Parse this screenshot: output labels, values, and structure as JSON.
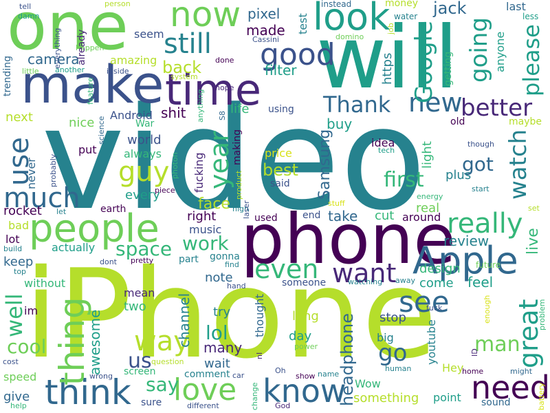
{
  "palette": {
    "dark_purple": "#440154",
    "indigo": "#3b528b",
    "blue": "#31688e",
    "teal": "#26828e",
    "green_teal": "#1f9e89",
    "green": "#35b779",
    "light_green": "#6ece58",
    "lime": "#b5de2b",
    "yellow": "#d8e219"
  },
  "words": [
    {
      "text": "video",
      "color": "#26828e"
    },
    {
      "text": "iPhone",
      "color": "#b5de2b"
    },
    {
      "text": "phone",
      "color": "#440154"
    },
    {
      "text": "will",
      "color": "#1f9e89"
    },
    {
      "text": "one",
      "color": "#6ece58"
    },
    {
      "text": "make",
      "color": "#3b528b"
    },
    {
      "text": "time",
      "color": "#482878"
    },
    {
      "text": "people",
      "color": "#6ece58"
    },
    {
      "text": "Apple",
      "color": "#31688e"
    },
    {
      "text": "look",
      "color": "#1f9e89"
    },
    {
      "text": "now",
      "color": "#6ece58"
    },
    {
      "text": "good",
      "color": "#3b528b"
    },
    {
      "text": "still",
      "color": "#26828e"
    },
    {
      "text": "think",
      "color": "#31688e"
    },
    {
      "text": "know",
      "color": "#31688e"
    },
    {
      "text": "need",
      "color": "#440154"
    },
    {
      "text": "love",
      "color": "#6ece58"
    },
    {
      "text": "see",
      "color": "#31688e"
    },
    {
      "text": "really",
      "color": "#35b779"
    },
    {
      "text": "thing",
      "color": "#6ece58"
    },
    {
      "text": "way",
      "color": "#b5de2b"
    },
    {
      "text": "much",
      "color": "#31688e"
    },
    {
      "text": "use",
      "color": "#31688e"
    },
    {
      "text": "guy",
      "color": "#b5de2b"
    },
    {
      "text": "year",
      "color": "#35b779"
    },
    {
      "text": "even",
      "color": "#35b779"
    },
    {
      "text": "want",
      "color": "#482878"
    },
    {
      "text": "work",
      "color": "#35b779"
    },
    {
      "text": "great",
      "color": "#1f9e89"
    },
    {
      "text": "Thank",
      "color": "#31688e"
    },
    {
      "text": "new",
      "color": "#31688e"
    },
    {
      "text": "better",
      "color": "#482878"
    },
    {
      "text": "Google",
      "color": "#1f9e89"
    },
    {
      "text": "going",
      "color": "#1f9e89"
    },
    {
      "text": "please",
      "color": "#1f9e89"
    },
    {
      "text": "watch",
      "color": "#26828e"
    },
    {
      "text": "first",
      "color": "#35b779"
    },
    {
      "text": "got",
      "color": "#31688e"
    },
    {
      "text": "well",
      "color": "#35b779"
    },
    {
      "text": "us",
      "color": "#3b528b"
    },
    {
      "text": "go",
      "color": "#31688e"
    },
    {
      "text": "say",
      "color": "#35b779"
    },
    {
      "text": "space",
      "color": "#35b779"
    },
    {
      "text": "back",
      "color": "#b5de2b"
    },
    {
      "text": "lol",
      "color": "#1f9e89"
    },
    {
      "text": "cool",
      "color": "#6ece58"
    },
    {
      "text": "man",
      "color": "#6ece58"
    },
    {
      "text": "headphone",
      "color": "#31688e"
    },
    {
      "text": "Samsung",
      "color": "#31688e"
    },
    {
      "text": "awesome",
      "color": "#1f9e89"
    },
    {
      "text": "channel",
      "color": "#26828e"
    },
    {
      "text": "review",
      "color": "#26828e"
    },
    {
      "text": "live",
      "color": "#35b779"
    },
    {
      "text": "face",
      "color": "#b5de2b"
    },
    {
      "text": "best",
      "color": "#b5de2b"
    },
    {
      "text": "light",
      "color": "#35b779"
    },
    {
      "text": "jack",
      "color": "#31688e"
    },
    {
      "text": "pixel",
      "color": "#31688e"
    },
    {
      "text": "made",
      "color": "#440154"
    },
    {
      "text": "filter",
      "color": "#1f9e89"
    },
    {
      "text": "camera",
      "color": "#31688e"
    },
    {
      "text": "amazing",
      "color": "#b5de2b"
    },
    {
      "text": "already",
      "color": "#482878"
    },
    {
      "text": "seem",
      "color": "#3b528b"
    },
    {
      "text": "test",
      "color": "#26828e"
    },
    {
      "text": "instead",
      "color": "#31688e"
    },
    {
      "text": "money",
      "color": "#b5de2b"
    },
    {
      "text": "last",
      "color": "#31688e"
    },
    {
      "text": "less",
      "color": "#1f9e89"
    },
    {
      "text": "water",
      "color": "#26828e"
    },
    {
      "text": "anyone",
      "color": "#1f9e89"
    },
    {
      "text": "getting",
      "color": "#35b779"
    },
    {
      "text": "https",
      "color": "#26828e"
    },
    {
      "text": "domino",
      "color": "#6ece58"
    },
    {
      "text": "Cassini",
      "color": "#3b528b"
    },
    {
      "text": "job",
      "color": "#b5de2b"
    },
    {
      "text": "tell",
      "color": "#3b528b"
    },
    {
      "text": "damn",
      "color": "#1f9e89"
    },
    {
      "text": "everything",
      "color": "#3b528b"
    },
    {
      "text": "person",
      "color": "#b5de2b"
    },
    {
      "text": "happen",
      "color": "#6ece58"
    },
    {
      "text": "another",
      "color": "#1f9e89"
    },
    {
      "text": "little",
      "color": "#6ece58"
    },
    {
      "text": "trending",
      "color": "#31688e"
    },
    {
      "text": "inside",
      "color": "#3b528b"
    },
    {
      "text": "feature",
      "color": "#35b779"
    },
    {
      "text": "system",
      "color": "#b5de2b"
    },
    {
      "text": "done",
      "color": "#440154"
    },
    {
      "text": "hope",
      "color": "#482878"
    },
    {
      "text": "Android",
      "color": "#3b528b"
    },
    {
      "text": "shit",
      "color": "#440154"
    },
    {
      "text": "life",
      "color": "#35b779"
    },
    {
      "text": "using",
      "color": "#3b528b"
    },
    {
      "text": "next",
      "color": "#b5de2b"
    },
    {
      "text": "nice",
      "color": "#6ece58"
    },
    {
      "text": "War",
      "color": "#35b779"
    },
    {
      "text": "science",
      "color": "#31688e"
    },
    {
      "text": "world",
      "color": "#3b528b"
    },
    {
      "text": "always",
      "color": "#35b779"
    },
    {
      "text": "put",
      "color": "#440154"
    },
    {
      "text": "never",
      "color": "#31688e"
    },
    {
      "text": "every",
      "color": "#1f9e89"
    },
    {
      "text": "fucking",
      "color": "#482878"
    },
    {
      "text": "making",
      "color": "#440154"
    },
    {
      "text": "anything",
      "color": "#35b779"
    },
    {
      "text": "S8",
      "color": "#31688e"
    },
    {
      "text": "buy",
      "color": "#1f9e89"
    },
    {
      "text": "old",
      "color": "#440154"
    },
    {
      "text": "maybe",
      "color": "#b5de2b"
    },
    {
      "text": "idea",
      "color": "#440154"
    },
    {
      "text": "tech",
      "color": "#1f9e89"
    },
    {
      "text": "though",
      "color": "#3b528b"
    },
    {
      "text": "price",
      "color": "#d8e219"
    },
    {
      "text": "said",
      "color": "#3b528b"
    },
    {
      "text": "plus",
      "color": "#26828e"
    },
    {
      "text": "start",
      "color": "#26828e"
    },
    {
      "text": "photon",
      "color": "#35b779"
    },
    {
      "text": "product",
      "color": "#b5de2b"
    },
    {
      "text": "laser",
      "color": "#3b528b"
    },
    {
      "text": "piece",
      "color": "#440154"
    },
    {
      "text": "earth",
      "color": "#440154"
    },
    {
      "text": "rocket",
      "color": "#440154"
    },
    {
      "text": "probably",
      "color": "#3b528b"
    },
    {
      "text": "let",
      "color": "#26828e"
    },
    {
      "text": "right",
      "color": "#440154"
    },
    {
      "text": "high",
      "color": "#26828e"
    },
    {
      "text": "energy",
      "color": "#35b779"
    },
    {
      "text": "stuff",
      "color": "#d8e219"
    },
    {
      "text": "real",
      "color": "#6ece58"
    },
    {
      "text": "set",
      "color": "#b5de2b"
    },
    {
      "text": "take",
      "color": "#31688e"
    },
    {
      "text": "cut",
      "color": "#35b779"
    },
    {
      "text": "around",
      "color": "#440154"
    },
    {
      "text": "end",
      "color": "#3b528b"
    },
    {
      "text": "used",
      "color": "#440154"
    },
    {
      "text": "music",
      "color": "#3b528b"
    },
    {
      "text": "bad",
      "color": "#b5de2b"
    },
    {
      "text": "lot",
      "color": "#440154"
    },
    {
      "text": "build",
      "color": "#26828e"
    },
    {
      "text": "actually",
      "color": "#1f9e89"
    },
    {
      "text": "part",
      "color": "#26828e"
    },
    {
      "text": "gonna",
      "color": "#26828e"
    },
    {
      "text": "dont",
      "color": "#3b528b"
    },
    {
      "text": "pretty",
      "color": "#440154"
    },
    {
      "text": "find",
      "color": "#26828e"
    },
    {
      "text": "note",
      "color": "#31688e"
    },
    {
      "text": "design",
      "color": "#35b779"
    },
    {
      "text": "come",
      "color": "#1f9e89"
    },
    {
      "text": "feel",
      "color": "#1f9e89"
    },
    {
      "text": "future",
      "color": "#6ece58"
    },
    {
      "text": "away",
      "color": "#26828e"
    },
    {
      "text": "watching",
      "color": "#26828e"
    },
    {
      "text": "someone",
      "color": "#3b528b"
    },
    {
      "text": "hand",
      "color": "#3b528b"
    },
    {
      "text": "keep",
      "color": "#31688e"
    },
    {
      "text": "top",
      "color": "#26828e"
    },
    {
      "text": "without",
      "color": "#35b779"
    },
    {
      "text": "im",
      "color": "#440154"
    },
    {
      "text": "mean",
      "color": "#482878"
    },
    {
      "text": "two",
      "color": "#35b779"
    },
    {
      "text": "try",
      "color": "#26828e"
    },
    {
      "text": "thought",
      "color": "#31688e"
    },
    {
      "text": "fuck",
      "color": "#3b528b"
    },
    {
      "text": "long",
      "color": "#b5de2b"
    },
    {
      "text": "stop",
      "color": "#3b528b"
    },
    {
      "text": "youtube",
      "color": "#26828e"
    },
    {
      "text": "day",
      "color": "#1f9e89"
    },
    {
      "text": "big",
      "color": "#26828e"
    },
    {
      "text": "many",
      "color": "#482878"
    },
    {
      "text": "wait",
      "color": "#31688e"
    },
    {
      "text": "nI",
      "color": "#482878"
    },
    {
      "text": "power",
      "color": "#6ece58"
    },
    {
      "text": "enough",
      "color": "#d8e219"
    },
    {
      "text": "problem",
      "color": "#35b779"
    },
    {
      "text": "ID",
      "color": "#482878"
    },
    {
      "text": "home",
      "color": "#440154"
    },
    {
      "text": "might",
      "color": "#31688e"
    },
    {
      "text": "cost",
      "color": "#3b528b"
    },
    {
      "text": "question",
      "color": "#b5de2b"
    },
    {
      "text": "screen",
      "color": "#35b779"
    },
    {
      "text": "comment",
      "color": "#26828e"
    },
    {
      "text": "car",
      "color": "#3b528b"
    },
    {
      "text": "Oh",
      "color": "#3b528b"
    },
    {
      "text": "human",
      "color": "#26828e"
    },
    {
      "text": "Hey",
      "color": "#b5de2b"
    },
    {
      "text": "speed",
      "color": "#6ece58"
    },
    {
      "text": "wrong",
      "color": "#3b528b"
    },
    {
      "text": "give",
      "color": "#31688e"
    },
    {
      "text": "sure",
      "color": "#3b528b"
    },
    {
      "text": "change",
      "color": "#35b779"
    },
    {
      "text": "show",
      "color": "#440154"
    },
    {
      "text": "name",
      "color": "#26828e"
    },
    {
      "text": "Wow",
      "color": "#35b779"
    },
    {
      "text": "something",
      "color": "#b5de2b"
    },
    {
      "text": "point",
      "color": "#1f9e89"
    },
    {
      "text": "sound",
      "color": "#31688e"
    },
    {
      "text": "battery",
      "color": "#d8e219"
    },
    {
      "text": "help",
      "color": "#35b779"
    },
    {
      "text": "different",
      "color": "#3b528b"
    },
    {
      "text": "God",
      "color": "#482878"
    }
  ]
}
